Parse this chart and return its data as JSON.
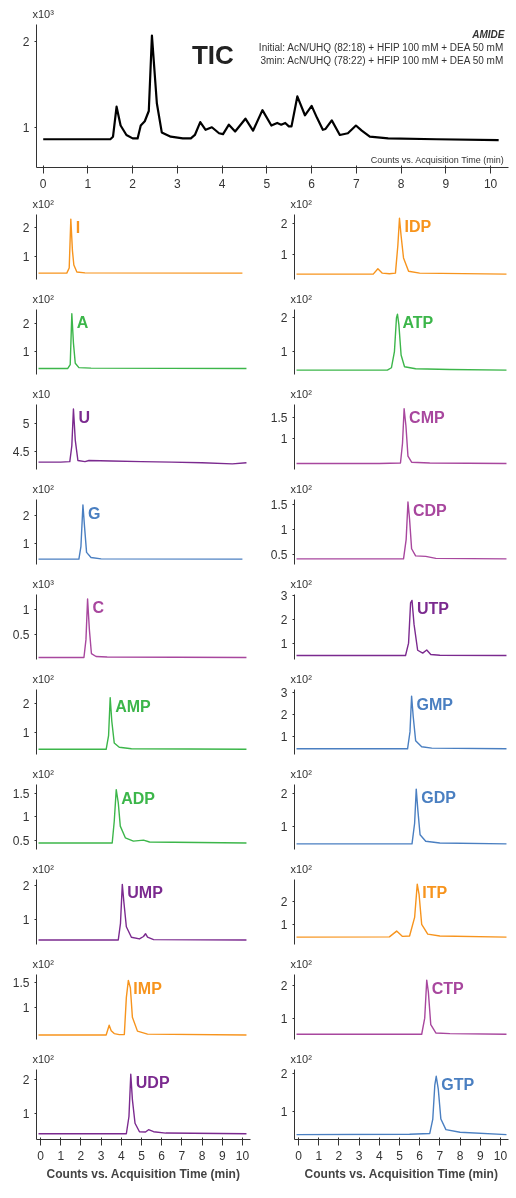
{
  "chart_data": [
    {
      "type": "line",
      "title": "TIC",
      "ylabel": "x10³",
      "xlabel": "Counts vs. Acquisition Time (min)",
      "annotations": [
        "AMIDE",
        "Initial: AcN/UHQ (82:18) + HFIP 100 mM + DEA 50 mM",
        "3min: AcN/UHQ (78:22) + HFIP 100 mM + DEA 50 mM"
      ],
      "xlim": [
        -0.15,
        10.4
      ],
      "xticks": [
        0,
        1,
        2,
        3,
        4,
        5,
        6,
        7,
        8,
        9,
        10
      ],
      "ylim": [
        0.53,
        2.2
      ],
      "yticks": [
        1,
        2
      ],
      "series": [
        {
          "color": "#000000",
          "x": [
            0,
            1.5,
            1.56,
            1.64,
            1.73,
            1.86,
            2.0,
            2.11,
            2.18,
            2.27,
            2.36,
            2.43,
            2.54,
            2.65,
            2.85,
            3.12,
            3.3,
            3.39,
            3.51,
            3.63,
            3.77,
            3.93,
            4.02,
            4.15,
            4.29,
            4.52,
            4.69,
            4.9,
            5.1,
            5.23,
            5.32,
            5.41,
            5.49,
            5.55,
            5.68,
            5.85,
            6.0,
            6.12,
            6.25,
            6.31,
            6.45,
            6.63,
            6.81,
            6.99,
            7.12,
            7.3,
            7.71,
            8.79,
            10.18
          ],
          "values": [
            0.86,
            0.86,
            0.89,
            1.24,
            1.02,
            0.91,
            0.87,
            0.87,
            1.02,
            1.07,
            1.19,
            2.07,
            1.28,
            0.94,
            0.89,
            0.87,
            0.87,
            0.91,
            1.06,
            0.97,
            1.0,
            0.93,
            0.92,
            1.03,
            0.95,
            1.1,
            0.96,
            1.2,
            1.02,
            1.05,
            1.03,
            1.05,
            1.01,
            1.01,
            1.36,
            1.14,
            1.25,
            1.11,
            0.97,
            0.98,
            1.08,
            0.91,
            0.93,
            1.02,
            0.96,
            0.89,
            0.87,
            0.86,
            0.85
          ]
        }
      ]
    },
    {
      "type": "line",
      "title": "I",
      "ylabel": "x10²",
      "tick_labels": "y",
      "xticks": [
        0,
        1,
        2,
        3,
        4,
        5,
        6,
        7,
        8,
        9,
        10
      ],
      "ylim": [
        0.2,
        2.45
      ],
      "yticks": [
        1,
        2
      ],
      "series": [
        {
          "color": "#f7941d",
          "x": [
            -0.1,
            1.3,
            1.42,
            1.5,
            1.58,
            1.65,
            1.8,
            2.2,
            10.0
          ],
          "values": [
            0.42,
            0.42,
            0.6,
            2.29,
            1.2,
            0.7,
            0.46,
            0.43,
            0.42
          ]
        }
      ]
    },
    {
      "type": "line",
      "title": "A",
      "ylabel": "x10²",
      "tick_labels": "y",
      "xticks": [
        0,
        1,
        2,
        3,
        4,
        5,
        6,
        7,
        8,
        9,
        10
      ],
      "ylim": [
        0.21,
        2.47
      ],
      "yticks": [
        1,
        2
      ],
      "series": [
        {
          "color": "#3cb64a",
          "x": [
            -0.1,
            1.35,
            1.47,
            1.55,
            1.63,
            1.72,
            1.9,
            2.5,
            10.2
          ],
          "values": [
            0.42,
            0.42,
            0.55,
            2.32,
            1.3,
            0.6,
            0.45,
            0.43,
            0.42
          ]
        }
      ]
    },
    {
      "type": "line",
      "title": "U",
      "ylabel": "x10",
      "tick_labels": "y",
      "xticks": [
        0,
        1,
        2,
        3,
        4,
        5,
        6,
        7,
        8,
        9,
        10
      ],
      "ylim": [
        4.18,
        5.33
      ],
      "yticks": [
        4.5,
        5
      ],
      "series": [
        {
          "color": "#7b2a8f",
          "x": [
            -0.1,
            1.0,
            1.45,
            1.55,
            1.63,
            1.72,
            1.85,
            2.2,
            2.4,
            3.5,
            5,
            6.5,
            8,
            9.5,
            10.2
          ],
          "values": [
            4.31,
            4.31,
            4.32,
            4.6,
            5.25,
            4.7,
            4.34,
            4.32,
            4.34,
            4.33,
            4.32,
            4.31,
            4.3,
            4.28,
            4.3
          ]
        }
      ]
    },
    {
      "type": "line",
      "title": "G",
      "ylabel": "x10²",
      "tick_labels": "y",
      "xticks": [
        0,
        1,
        2,
        3,
        4,
        5,
        6,
        7,
        8,
        9,
        10
      ],
      "ylim": [
        0.27,
        2.57
      ],
      "yticks": [
        1,
        2
      ],
      "series": [
        {
          "color": "#4a7fc1",
          "x": [
            -0.1,
            1.9,
            2.0,
            2.1,
            2.18,
            2.28,
            2.5,
            3.0,
            10.0
          ],
          "values": [
            0.46,
            0.46,
            0.9,
            2.38,
            1.6,
            0.7,
            0.52,
            0.47,
            0.46
          ]
        }
      ]
    },
    {
      "type": "line",
      "title": "C",
      "ylabel": "x10³",
      "tick_labels": "y",
      "xticks": [
        0,
        1,
        2,
        3,
        4,
        5,
        6,
        7,
        8,
        9,
        10
      ],
      "ylim": [
        0,
        1.31
      ],
      "yticks": [
        0.5,
        1
      ],
      "series": [
        {
          "color": "#a8479e",
          "x": [
            -0.1,
            2.15,
            2.25,
            2.33,
            2.42,
            2.52,
            2.75,
            3.3,
            10.2
          ],
          "values": [
            0.04,
            0.04,
            0.4,
            1.22,
            0.6,
            0.12,
            0.06,
            0.05,
            0.04
          ]
        }
      ]
    },
    {
      "type": "line",
      "title": "AMP",
      "ylabel": "x10²",
      "tick_labels": "y",
      "xticks": [
        0,
        1,
        2,
        3,
        4,
        5,
        6,
        7,
        8,
        9,
        10
      ],
      "ylim": [
        0.25,
        2.5
      ],
      "yticks": [
        1,
        2
      ],
      "series": [
        {
          "color": "#3cb64a",
          "x": [
            -0.1,
            3.25,
            3.37,
            3.45,
            3.53,
            3.65,
            3.9,
            4.5,
            10.2
          ],
          "values": [
            0.43,
            0.43,
            0.9,
            2.22,
            1.4,
            0.65,
            0.5,
            0.45,
            0.43
          ]
        }
      ]
    },
    {
      "type": "line",
      "title": "ADP",
      "ylabel": "x10²",
      "tick_labels": "y",
      "xticks": [
        0,
        1,
        2,
        3,
        4,
        5,
        6,
        7,
        8,
        9,
        10
      ],
      "ylim": [
        0.3,
        1.69
      ],
      "yticks": [
        0.5,
        1,
        1.5
      ],
      "series": [
        {
          "color": "#3cb64a",
          "x": [
            -0.1,
            3.55,
            3.65,
            3.75,
            3.85,
            3.95,
            4.2,
            4.6,
            5.1,
            5.4,
            10.2
          ],
          "values": [
            0.44,
            0.44,
            0.9,
            1.58,
            1.3,
            0.8,
            0.55,
            0.48,
            0.5,
            0.46,
            0.44
          ]
        }
      ]
    },
    {
      "type": "line",
      "title": "UMP",
      "ylabel": "x10²",
      "tick_labels": "y",
      "xticks": [
        0,
        1,
        2,
        3,
        4,
        5,
        6,
        7,
        8,
        9,
        10
      ],
      "ylim": [
        0.29,
        2.16
      ],
      "yticks": [
        1,
        2
      ],
      "series": [
        {
          "color": "#7b2a8f",
          "x": [
            -0.1,
            3.85,
            3.96,
            4.05,
            4.13,
            4.25,
            4.5,
            4.9,
            5.1,
            5.2,
            5.3,
            5.6,
            10.2
          ],
          "values": [
            0.42,
            0.42,
            0.9,
            2.02,
            1.5,
            0.8,
            0.5,
            0.45,
            0.52,
            0.6,
            0.5,
            0.43,
            0.42
          ]
        }
      ]
    },
    {
      "type": "line",
      "title": "IMP",
      "ylabel": "x10²",
      "tick_labels": "y",
      "xticks": [
        0,
        1,
        2,
        3,
        4,
        5,
        6,
        7,
        8,
        9,
        10
      ],
      "ylim": [
        0.35,
        1.67
      ],
      "yticks": [
        1,
        1.5
      ],
      "series": [
        {
          "color": "#f7941d",
          "x": [
            -0.1,
            3.25,
            3.4,
            3.5,
            3.65,
            3.9,
            4.15,
            4.25,
            4.35,
            4.45,
            4.55,
            4.8,
            5.3,
            10.2
          ],
          "values": [
            0.44,
            0.44,
            0.64,
            0.53,
            0.47,
            0.45,
            0.45,
            1.2,
            1.55,
            1.4,
            0.8,
            0.52,
            0.46,
            0.44
          ]
        }
      ]
    },
    {
      "type": "line",
      "title": "UDP",
      "ylabel": "x10²",
      "xlabel": "Counts vs. Acquisition Time (min)",
      "xlim": [
        -0.2,
        10.4
      ],
      "xticks": [
        0,
        1,
        2,
        3,
        4,
        5,
        6,
        7,
        8,
        9,
        10
      ],
      "ylim": [
        0.22,
        2.29
      ],
      "yticks": [
        1,
        2
      ],
      "series": [
        {
          "color": "#7b2a8f",
          "x": [
            -0.1,
            4.25,
            4.38,
            4.47,
            4.55,
            4.68,
            4.9,
            5.2,
            5.35,
            5.6,
            6.2,
            10.2
          ],
          "values": [
            0.39,
            0.39,
            0.9,
            2.15,
            1.4,
            0.7,
            0.45,
            0.44,
            0.51,
            0.45,
            0.41,
            0.39
          ]
        }
      ]
    },
    {
      "type": "line",
      "title": "IDP",
      "ylabel": "x10²",
      "tick_labels": "y",
      "xticks": [
        0,
        1,
        2,
        3,
        4,
        5,
        6,
        7,
        8,
        9,
        10
      ],
      "ylim": [
        0.22,
        2.27
      ],
      "yticks": [
        1,
        2
      ],
      "series": [
        {
          "color": "#f7941d",
          "x": [
            -0.1,
            3.7,
            3.93,
            4.15,
            4.5,
            4.8,
            4.92,
            5.0,
            5.08,
            5.2,
            5.45,
            6.0,
            10.3
          ],
          "values": [
            0.39,
            0.39,
            0.56,
            0.42,
            0.4,
            0.42,
            1.3,
            2.15,
            1.6,
            0.9,
            0.48,
            0.42,
            0.39
          ]
        }
      ]
    },
    {
      "type": "line",
      "title": "ATP",
      "ylabel": "x10²",
      "tick_labels": "y",
      "xticks": [
        0,
        1,
        2,
        3,
        4,
        5,
        6,
        7,
        8,
        9,
        10
      ],
      "ylim": [
        0.32,
        2.25
      ],
      "yticks": [
        1,
        2
      ],
      "series": [
        {
          "color": "#3cb64a",
          "x": [
            -0.1,
            4.4,
            4.6,
            4.75,
            4.85,
            4.9,
            4.97,
            5.08,
            5.25,
            5.8,
            7.5,
            10.3
          ],
          "values": [
            0.45,
            0.45,
            0.52,
            1.0,
            2.0,
            2.11,
            1.8,
            0.9,
            0.55,
            0.49,
            0.47,
            0.45
          ]
        }
      ]
    },
    {
      "type": "line",
      "title": "CMP",
      "ylabel": "x10²",
      "tick_labels": "y",
      "xticks": [
        0,
        1,
        2,
        3,
        4,
        5,
        6,
        7,
        8,
        9,
        10
      ],
      "ylim": [
        0.29,
        1.8
      ],
      "yticks": [
        1,
        1.5
      ],
      "series": [
        {
          "color": "#a8479e",
          "x": [
            -0.1,
            4.0,
            5.05,
            5.15,
            5.23,
            5.32,
            5.42,
            5.6,
            6.5,
            10.3
          ],
          "values": [
            0.43,
            0.43,
            0.44,
            0.9,
            1.7,
            1.3,
            0.6,
            0.46,
            0.44,
            0.43
          ]
        }
      ]
    },
    {
      "type": "line",
      "title": "CDP",
      "ylabel": "x10²",
      "tick_labels": "y",
      "xticks": [
        0,
        1,
        2,
        3,
        4,
        5,
        6,
        7,
        8,
        9,
        10
      ],
      "ylim": [
        0.31,
        1.59
      ],
      "yticks": [
        0.5,
        1,
        1.5
      ],
      "series": [
        {
          "color": "#a8479e",
          "x": [
            -0.1,
            5.2,
            5.33,
            5.42,
            5.5,
            5.6,
            5.8,
            6.3,
            6.8,
            10.3
          ],
          "values": [
            0.42,
            0.42,
            0.8,
            1.54,
            1.2,
            0.62,
            0.48,
            0.47,
            0.43,
            0.42
          ]
        }
      ]
    },
    {
      "type": "line",
      "title": "UTP",
      "ylabel": "x10²",
      "tick_labels": "y",
      "xticks": [
        0,
        1,
        2,
        3,
        4,
        5,
        6,
        7,
        8,
        9,
        10
      ],
      "ylim": [
        0.31,
        3.05
      ],
      "yticks": [
        1,
        2,
        3
      ],
      "series": [
        {
          "color": "#7b2a8f",
          "x": [
            -0.1,
            5.3,
            5.45,
            5.55,
            5.62,
            5.72,
            5.9,
            6.15,
            6.35,
            6.55,
            7,
            10.3
          ],
          "values": [
            0.48,
            0.48,
            1.0,
            2.7,
            2.8,
            1.8,
            0.7,
            0.58,
            0.71,
            0.52,
            0.49,
            0.48
          ]
        }
      ]
    },
    {
      "type": "line",
      "title": "GMP",
      "ylabel": "x10²",
      "tick_labels": "y",
      "xticks": [
        0,
        1,
        2,
        3,
        4,
        5,
        6,
        7,
        8,
        9,
        10
      ],
      "ylim": [
        0.17,
        3.13
      ],
      "yticks": [
        1,
        2,
        3
      ],
      "series": [
        {
          "color": "#4a7fc1",
          "x": [
            -0.1,
            5.4,
            5.52,
            5.6,
            5.68,
            5.8,
            6.1,
            6.6,
            10.3
          ],
          "values": [
            0.43,
            0.43,
            1.2,
            2.83,
            1.9,
            0.8,
            0.52,
            0.46,
            0.43
          ]
        }
      ]
    },
    {
      "type": "line",
      "title": "GDP",
      "ylabel": "x10²",
      "tick_labels": "y",
      "xticks": [
        0,
        1,
        2,
        3,
        4,
        5,
        6,
        7,
        8,
        9,
        10
      ],
      "ylim": [
        0.3,
        2.28
      ],
      "yticks": [
        1,
        2
      ],
      "series": [
        {
          "color": "#4a7fc1",
          "x": [
            -0.1,
            5.62,
            5.75,
            5.83,
            5.91,
            6.02,
            6.3,
            7,
            10.3
          ],
          "values": [
            0.47,
            0.47,
            1.1,
            2.14,
            1.5,
            0.75,
            0.55,
            0.5,
            0.47
          ]
        }
      ]
    },
    {
      "type": "line",
      "title": "ITP",
      "ylabel": "x10²",
      "tick_labels": "y",
      "xticks": [
        0,
        1,
        2,
        3,
        4,
        5,
        6,
        7,
        8,
        9,
        10
      ],
      "ylim": [
        0.13,
        2.94
      ],
      "yticks": [
        1,
        2
      ],
      "series": [
        {
          "color": "#f7941d",
          "x": [
            -0.1,
            4.5,
            4.86,
            5.15,
            5.5,
            5.75,
            5.88,
            5.97,
            6.1,
            6.4,
            7,
            10.3
          ],
          "values": [
            0.45,
            0.46,
            0.71,
            0.48,
            0.5,
            1.3,
            2.74,
            2.3,
            1.0,
            0.58,
            0.5,
            0.45
          ]
        }
      ]
    },
    {
      "type": "line",
      "title": "CTP",
      "ylabel": "x10²",
      "tick_labels": "y",
      "xticks": [
        0,
        1,
        2,
        3,
        4,
        5,
        6,
        7,
        8,
        9,
        10
      ],
      "ylim": [
        0.35,
        2.33
      ],
      "yticks": [
        1,
        2
      ],
      "series": [
        {
          "color": "#a8479e",
          "x": [
            -0.1,
            6.1,
            6.25,
            6.35,
            6.43,
            6.55,
            6.8,
            7.5,
            10.3
          ],
          "values": [
            0.51,
            0.51,
            1.0,
            2.16,
            1.8,
            0.8,
            0.55,
            0.53,
            0.51
          ]
        }
      ]
    },
    {
      "type": "line",
      "title": "GTP",
      "ylabel": "x10²",
      "xlabel": "Counts vs. Acquisition Time (min)",
      "xlim": [
        -0.2,
        10.4
      ],
      "xticks": [
        0,
        1,
        2,
        3,
        4,
        5,
        6,
        7,
        8,
        9,
        10
      ],
      "ylim": [
        0.26,
        2.11
      ],
      "yticks": [
        1,
        2
      ],
      "series": [
        {
          "color": "#4a7fc1",
          "x": [
            -0.1,
            5.5,
            6.5,
            6.65,
            6.75,
            6.82,
            6.92,
            7.05,
            7.3,
            8,
            10.3
          ],
          "values": [
            0.39,
            0.4,
            0.42,
            0.8,
            1.7,
            1.93,
            1.6,
            0.8,
            0.52,
            0.45,
            0.39
          ]
        }
      ]
    }
  ]
}
